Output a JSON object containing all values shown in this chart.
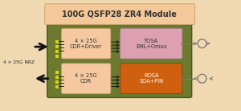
{
  "title": "100G QSFP28 ZR4 Module",
  "title_bg": "#f5c89a",
  "title_color": "#333333",
  "bg_color": "#f0d8b0",
  "module_bg": "#6b7a2e",
  "module_border": "#4a5520",
  "cdr_driver_label": "4 × 25G\nCDR+Driver",
  "cdr_label": "4 × 25G\nCDR",
  "tosa_label": "TOSA\nEML+Omux",
  "rosa_label": "ROSA\nSOA+PIN",
  "nrz_label": "4 × 25G NRZ",
  "cdr_driver_bg": "#f5c8a0",
  "cdr_bg": "#f5c8a0",
  "tosa_bg": "#dda0b0",
  "rosa_bg": "#d06010",
  "yellow_pad": "#d8d800",
  "arrow_color": "#111111",
  "connector_color": "#777777",
  "figsize": [
    3.0,
    1.38
  ],
  "dpi": 100
}
